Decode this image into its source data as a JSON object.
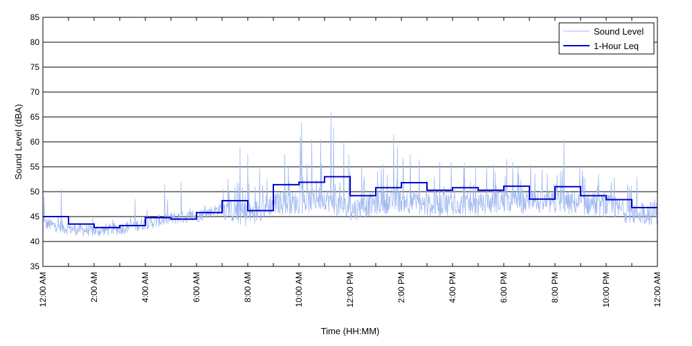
{
  "chart_data": {
    "type": "line",
    "title": "",
    "xlabel": "Time (HH:MM)",
    "ylabel": "Sound Level (dBA)",
    "ylim": [
      35,
      85
    ],
    "xlim": [
      0,
      24
    ],
    "yticks": [
      "35",
      "40",
      "45",
      "50",
      "55",
      "60",
      "65",
      "70",
      "75",
      "80",
      "85"
    ],
    "xticks": [
      {
        "hour": 0,
        "label": "12:00 AM"
      },
      {
        "hour": 2,
        "label": "2:00 AM"
      },
      {
        "hour": 4,
        "label": "4:00 AM"
      },
      {
        "hour": 6,
        "label": "6:00 AM"
      },
      {
        "hour": 8,
        "label": "8:00 AM"
      },
      {
        "hour": 10,
        "label": "10:00 AM"
      },
      {
        "hour": 12,
        "label": "12:00 PM"
      },
      {
        "hour": 14,
        "label": "2:00 PM"
      },
      {
        "hour": 16,
        "label": "4:00 PM"
      },
      {
        "hour": 18,
        "label": "6:00 PM"
      },
      {
        "hour": 20,
        "label": "8:00 PM"
      },
      {
        "hour": 22,
        "label": "10:00 PM"
      },
      {
        "hour": 24,
        "label": "12:00 AM"
      }
    ],
    "grid": "horizontal",
    "legend_position": "top-right",
    "series": [
      {
        "name": "Sound Level",
        "color": "#9fb8f0",
        "hourly_base": [
          43.5,
          42.5,
          42.0,
          42.5,
          43.5,
          44.5,
          45.0,
          46.5,
          45.0,
          47.5,
          47.5,
          48.5,
          46.0,
          47.5,
          48.0,
          47.0,
          47.5,
          47.0,
          48.0,
          47.5,
          47.5,
          47.5,
          47.0,
          45.5
        ],
        "peaks": [
          {
            "hour": 0.05,
            "value": 49.0
          },
          {
            "hour": 0.72,
            "value": 50.5
          },
          {
            "hour": 3.6,
            "value": 48.5
          },
          {
            "hour": 4.75,
            "value": 51.5
          },
          {
            "hour": 5.4,
            "value": 52.0
          },
          {
            "hour": 7.5,
            "value": 51.0
          },
          {
            "hour": 7.7,
            "value": 59.0
          },
          {
            "hour": 8.0,
            "value": 57.5
          },
          {
            "hour": 8.75,
            "value": 52.5
          },
          {
            "hour": 9.45,
            "value": 57.5
          },
          {
            "hour": 10.05,
            "value": 61.0
          },
          {
            "hour": 10.1,
            "value": 64.0
          },
          {
            "hour": 10.5,
            "value": 60.5
          },
          {
            "hour": 10.85,
            "value": 60.5
          },
          {
            "hour": 11.25,
            "value": 66.0
          },
          {
            "hour": 11.35,
            "value": 63.0
          },
          {
            "hour": 11.75,
            "value": 60.0
          },
          {
            "hour": 11.95,
            "value": 57.5
          },
          {
            "hour": 12.45,
            "value": 55.0
          },
          {
            "hour": 13.3,
            "value": 55.5
          },
          {
            "hour": 13.7,
            "value": 61.5
          },
          {
            "hour": 13.85,
            "value": 59.0
          },
          {
            "hour": 14.35,
            "value": 57.5
          },
          {
            "hour": 14.7,
            "value": 56.5
          },
          {
            "hour": 15.5,
            "value": 56.0
          },
          {
            "hour": 15.95,
            "value": 56.0
          },
          {
            "hour": 16.9,
            "value": 55.0
          },
          {
            "hour": 17.6,
            "value": 55.5
          },
          {
            "hour": 18.35,
            "value": 56.0
          },
          {
            "hour": 19.05,
            "value": 55.5
          },
          {
            "hour": 20.35,
            "value": 60.5
          },
          {
            "hour": 21.1,
            "value": 53.0
          },
          {
            "hour": 22.2,
            "value": 52.0
          },
          {
            "hour": 23.2,
            "value": 53.0
          },
          {
            "hour": 23.9,
            "value": 48.5
          }
        ]
      },
      {
        "name": "1-Hour Leq",
        "color": "#0000cc",
        "hours": [
          0,
          1,
          2,
          3,
          4,
          5,
          6,
          7,
          8,
          9,
          10,
          11,
          12,
          13,
          14,
          15,
          16,
          17,
          18,
          19,
          20,
          21,
          22,
          23
        ],
        "values": [
          45.0,
          43.5,
          42.8,
          43.2,
          44.8,
          44.5,
          45.8,
          48.2,
          46.2,
          51.4,
          51.9,
          53.0,
          49.2,
          50.8,
          51.8,
          50.3,
          50.8,
          50.3,
          51.1,
          48.5,
          51.0,
          49.2,
          48.4,
          46.8
        ]
      }
    ]
  }
}
